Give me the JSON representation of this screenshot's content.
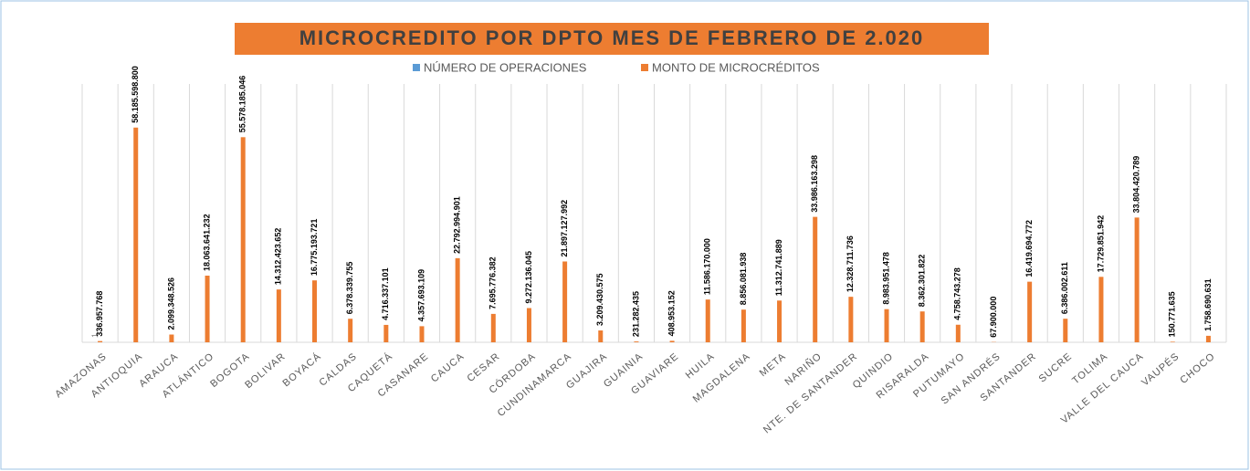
{
  "chart_data": {
    "type": "bar",
    "title": "MICROCREDITO POR DPTO MES DE FEBRERO DE 2.020",
    "categories": [
      "AMAZONAS",
      "ANTIOQUIA",
      "ARAUCA",
      "ATLÁNTICO",
      "BOGOTA",
      "BOLIVAR",
      "BOYACÁ",
      "CALDAS",
      "CAQUETÁ",
      "CASANARE",
      "CAUCA",
      "CESAR",
      "CÓRDOBA",
      "CUNDINAMARCA",
      "GUAJIRA",
      "GUAINIA",
      "GUAVIARE",
      "HUILA",
      "MAGDALENA",
      "META",
      "NARIÑO",
      "NTE. DE SANTANDER",
      "QUINDIO",
      "RISARALDA",
      "PUTUMAYO",
      "SAN ANDRÉS",
      "SANTANDER",
      "SUCRE",
      "TOLIMA",
      "VALLE DEL CAUCA",
      "VAUPÉS",
      "CHOCO"
    ],
    "series": [
      {
        "name": "NÚMERO DE OPERACIONES",
        "color": "#5b9bd5",
        "values": [
          1,
          null,
          null,
          null,
          null,
          null,
          null,
          null,
          null,
          null,
          null,
          null,
          null,
          null,
          null,
          null,
          null,
          null,
          null,
          null,
          null,
          null,
          null,
          null,
          null,
          null,
          null,
          null,
          null,
          null,
          null,
          null
        ]
      },
      {
        "name": "MONTO DE MICROCRÉDITOS",
        "color": "#ed7d31",
        "values": [
          336957768,
          58185598800,
          2099348526,
          18063641232,
          55578185046,
          14312423652,
          16775193721,
          6378339755,
          4716337101,
          4357693109,
          22792994901,
          7695776382,
          9272136045,
          21897127992,
          3209430575,
          231282435,
          408953152,
          11586170000,
          8856081938,
          11312741889,
          33986163298,
          12328711736,
          8983951478,
          8362301822,
          4758743278,
          67900000,
          16419694772,
          6386002611,
          17729851942,
          33804420789,
          150771635,
          1758690631
        ],
        "value_labels": [
          "336.957.768",
          "58.185.598.800",
          "2.099.348.526",
          "18.063.641.232",
          "55.578.185.046",
          "14.312.423.652",
          "16.775.193.721",
          "6.378.339.755",
          "4.716.337.101",
          "4.357.693.109",
          "22.792.994.901",
          "7.695.776.382",
          "9.272.136.045",
          "21.897.127.992",
          "3.209.430.575",
          "231.282.435",
          "408.953.152",
          "11.586.170.000",
          "8.856.081.938",
          "11.312.741.889",
          "33.986.163.298",
          "12.328.711.736",
          "8.983.951.478",
          "8.362.301.822",
          "4.758.743.278",
          "67.900.000",
          "16.419.694.772",
          "6.386.002.611",
          "17.729.851.942",
          "33.804.420.789",
          "150.771.635",
          "1.758.690.631"
        ]
      }
    ],
    "ylim": [
      0,
      70000000000
    ],
    "grid": true
  }
}
